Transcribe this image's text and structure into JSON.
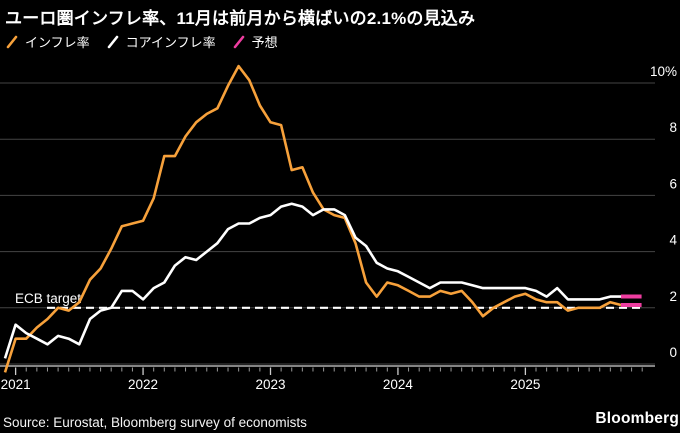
{
  "title": "ユーロ圏インフレ率、11月は前月から横ばいの2.1%の見込み",
  "source": "Source: Eurostat, Bloomberg survey of economists",
  "logo": "Bloomberg",
  "legend": {
    "items": [
      {
        "label": "インフレ率",
        "color": "#F7A13B"
      },
      {
        "label": "コアインフレ率",
        "color": "#FFFFFF"
      },
      {
        "label": "予想",
        "color": "#EE3DA0"
      }
    ]
  },
  "colors": {
    "background": "#000000",
    "headline_line": "#F7A13B",
    "core_line": "#FFFFFF",
    "forecast": "#EE3DA0",
    "gridline": "#444444",
    "axis": "#B0B0B0",
    "text": "#FFFFFF"
  },
  "chart_data": {
    "type": "line",
    "title": "ユーロ圏インフレ率、11月は前月から横ばいの2.1%の見込み",
    "xlabel": "",
    "ylabel": "%",
    "ylim": [
      -0.6,
      10.9
    ],
    "grid": true,
    "legend_position": "top",
    "x": [
      "2020-12",
      "2021-01",
      "2021-02",
      "2021-03",
      "2021-04",
      "2021-05",
      "2021-06",
      "2021-07",
      "2021-08",
      "2021-09",
      "2021-10",
      "2021-11",
      "2021-12",
      "2022-01",
      "2022-02",
      "2022-03",
      "2022-04",
      "2022-05",
      "2022-06",
      "2022-07",
      "2022-08",
      "2022-09",
      "2022-10",
      "2022-11",
      "2022-12",
      "2023-01",
      "2023-02",
      "2023-03",
      "2023-04",
      "2023-05",
      "2023-06",
      "2023-07",
      "2023-08",
      "2023-09",
      "2023-10",
      "2023-11",
      "2023-12",
      "2024-01",
      "2024-02",
      "2024-03",
      "2024-04",
      "2024-05",
      "2024-06",
      "2024-07",
      "2024-08",
      "2024-09",
      "2024-10",
      "2024-11",
      "2024-12",
      "2025-01",
      "2025-02",
      "2025-03",
      "2025-04",
      "2025-05",
      "2025-06",
      "2025-07",
      "2025-08",
      "2025-09",
      "2025-10",
      "2025-11"
    ],
    "series": [
      {
        "name": "インフレ率",
        "color": "#F7A13B",
        "values": [
          -0.3,
          0.9,
          0.9,
          1.3,
          1.6,
          2.0,
          1.9,
          2.2,
          3.0,
          3.4,
          4.1,
          4.9,
          5.0,
          5.1,
          5.9,
          7.4,
          7.4,
          8.1,
          8.6,
          8.9,
          9.1,
          9.9,
          10.6,
          10.1,
          9.2,
          8.6,
          8.5,
          6.9,
          7.0,
          6.1,
          5.5,
          5.3,
          5.2,
          4.3,
          2.9,
          2.4,
          2.9,
          2.8,
          2.6,
          2.4,
          2.4,
          2.6,
          2.5,
          2.6,
          2.2,
          1.7,
          2.0,
          2.2,
          2.4,
          2.5,
          2.3,
          2.2,
          2.2,
          1.9,
          2.0,
          2.0,
          2.0,
          2.2,
          2.1,
          2.1
        ]
      },
      {
        "name": "コアインフレ率",
        "color": "#FFFFFF",
        "values": [
          0.2,
          1.4,
          1.1,
          0.9,
          0.7,
          1.0,
          0.9,
          0.7,
          1.6,
          1.9,
          2.0,
          2.6,
          2.6,
          2.3,
          2.7,
          2.9,
          3.5,
          3.8,
          3.7,
          4.0,
          4.3,
          4.8,
          5.0,
          5.0,
          5.2,
          5.3,
          5.6,
          5.7,
          5.6,
          5.3,
          5.5,
          5.5,
          5.3,
          4.5,
          4.2,
          3.6,
          3.4,
          3.3,
          3.1,
          2.9,
          2.7,
          2.9,
          2.9,
          2.9,
          2.8,
          2.7,
          2.7,
          2.7,
          2.7,
          2.7,
          2.6,
          2.4,
          2.7,
          2.3,
          2.3,
          2.3,
          2.3,
          2.4,
          2.4,
          2.4
        ]
      }
    ],
    "forecast": {
      "label": "予想",
      "color": "#EE3DA0",
      "month": "2025-11",
      "inflation": 2.1,
      "core_inflation": 2.4
    },
    "yticks": [
      {
        "label": "10%",
        "value": 10
      },
      {
        "label": "8",
        "value": 8
      },
      {
        "label": "6",
        "value": 6
      },
      {
        "label": "4",
        "value": 4
      },
      {
        "label": "2",
        "value": 2
      },
      {
        "label": "0",
        "value": 0
      }
    ],
    "year_labels": [
      {
        "label": "2021",
        "month_index": 1
      },
      {
        "label": "2022",
        "month_index": 13
      },
      {
        "label": "2023",
        "month_index": 25
      },
      {
        "label": "2024",
        "month_index": 37
      },
      {
        "label": "2025",
        "month_index": 49
      }
    ],
    "ecb_target": {
      "label": "ECB target",
      "value": 2
    }
  }
}
